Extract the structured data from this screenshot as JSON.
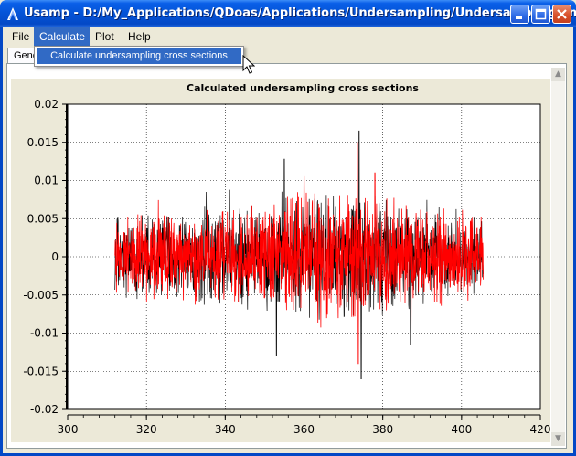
{
  "window": {
    "title": "Usamp - D:/My_Applications/QDoas/Applications/Undersampling/Undersampling.xml",
    "icon": "app-icon"
  },
  "menubar": {
    "items": [
      "File",
      "Calculate",
      "Plot",
      "Help"
    ]
  },
  "tabs": {
    "active_label": "General"
  },
  "dropdown": {
    "items": [
      "Calculate undersampling cross sections"
    ]
  },
  "colors": {
    "series_black": "#000000",
    "series_red": "#ff0000",
    "highlight": "#316ac5"
  },
  "chart_data": {
    "type": "line",
    "title": "Calculated undersampling cross sections",
    "xlabel": "",
    "ylabel": "",
    "xlim": [
      300,
      420
    ],
    "ylim": [
      -0.02,
      0.02
    ],
    "xticks": [
      300,
      320,
      340,
      360,
      380,
      400,
      420
    ],
    "yticks": [
      0.02,
      0.015,
      0.01,
      0.005,
      0,
      -0.005,
      -0.01,
      -0.015,
      -0.02
    ],
    "ytick_labels": [
      "0.02",
      "0.015",
      "0.01",
      "0.005",
      "0",
      "-0.005",
      "-0.01",
      "-0.015",
      "-0.02"
    ],
    "grid": true,
    "x_data_range": [
      312,
      405.5
    ],
    "series": [
      {
        "color": "#000000",
        "amplitude_typical": 0.006,
        "peaks": [
          [
            353,
            -0.013
          ],
          [
            374,
            0.0165
          ],
          [
            374.5,
            -0.016
          ],
          [
            355,
            0.0128
          ],
          [
            387,
            -0.0115
          ]
        ]
      },
      {
        "color": "#ff0000",
        "amplitude_typical": 0.006,
        "peaks": [
          [
            373.5,
            0.015
          ],
          [
            373.8,
            -0.014
          ],
          [
            378,
            0.011
          ],
          [
            360,
            0.0105
          ]
        ]
      }
    ]
  }
}
